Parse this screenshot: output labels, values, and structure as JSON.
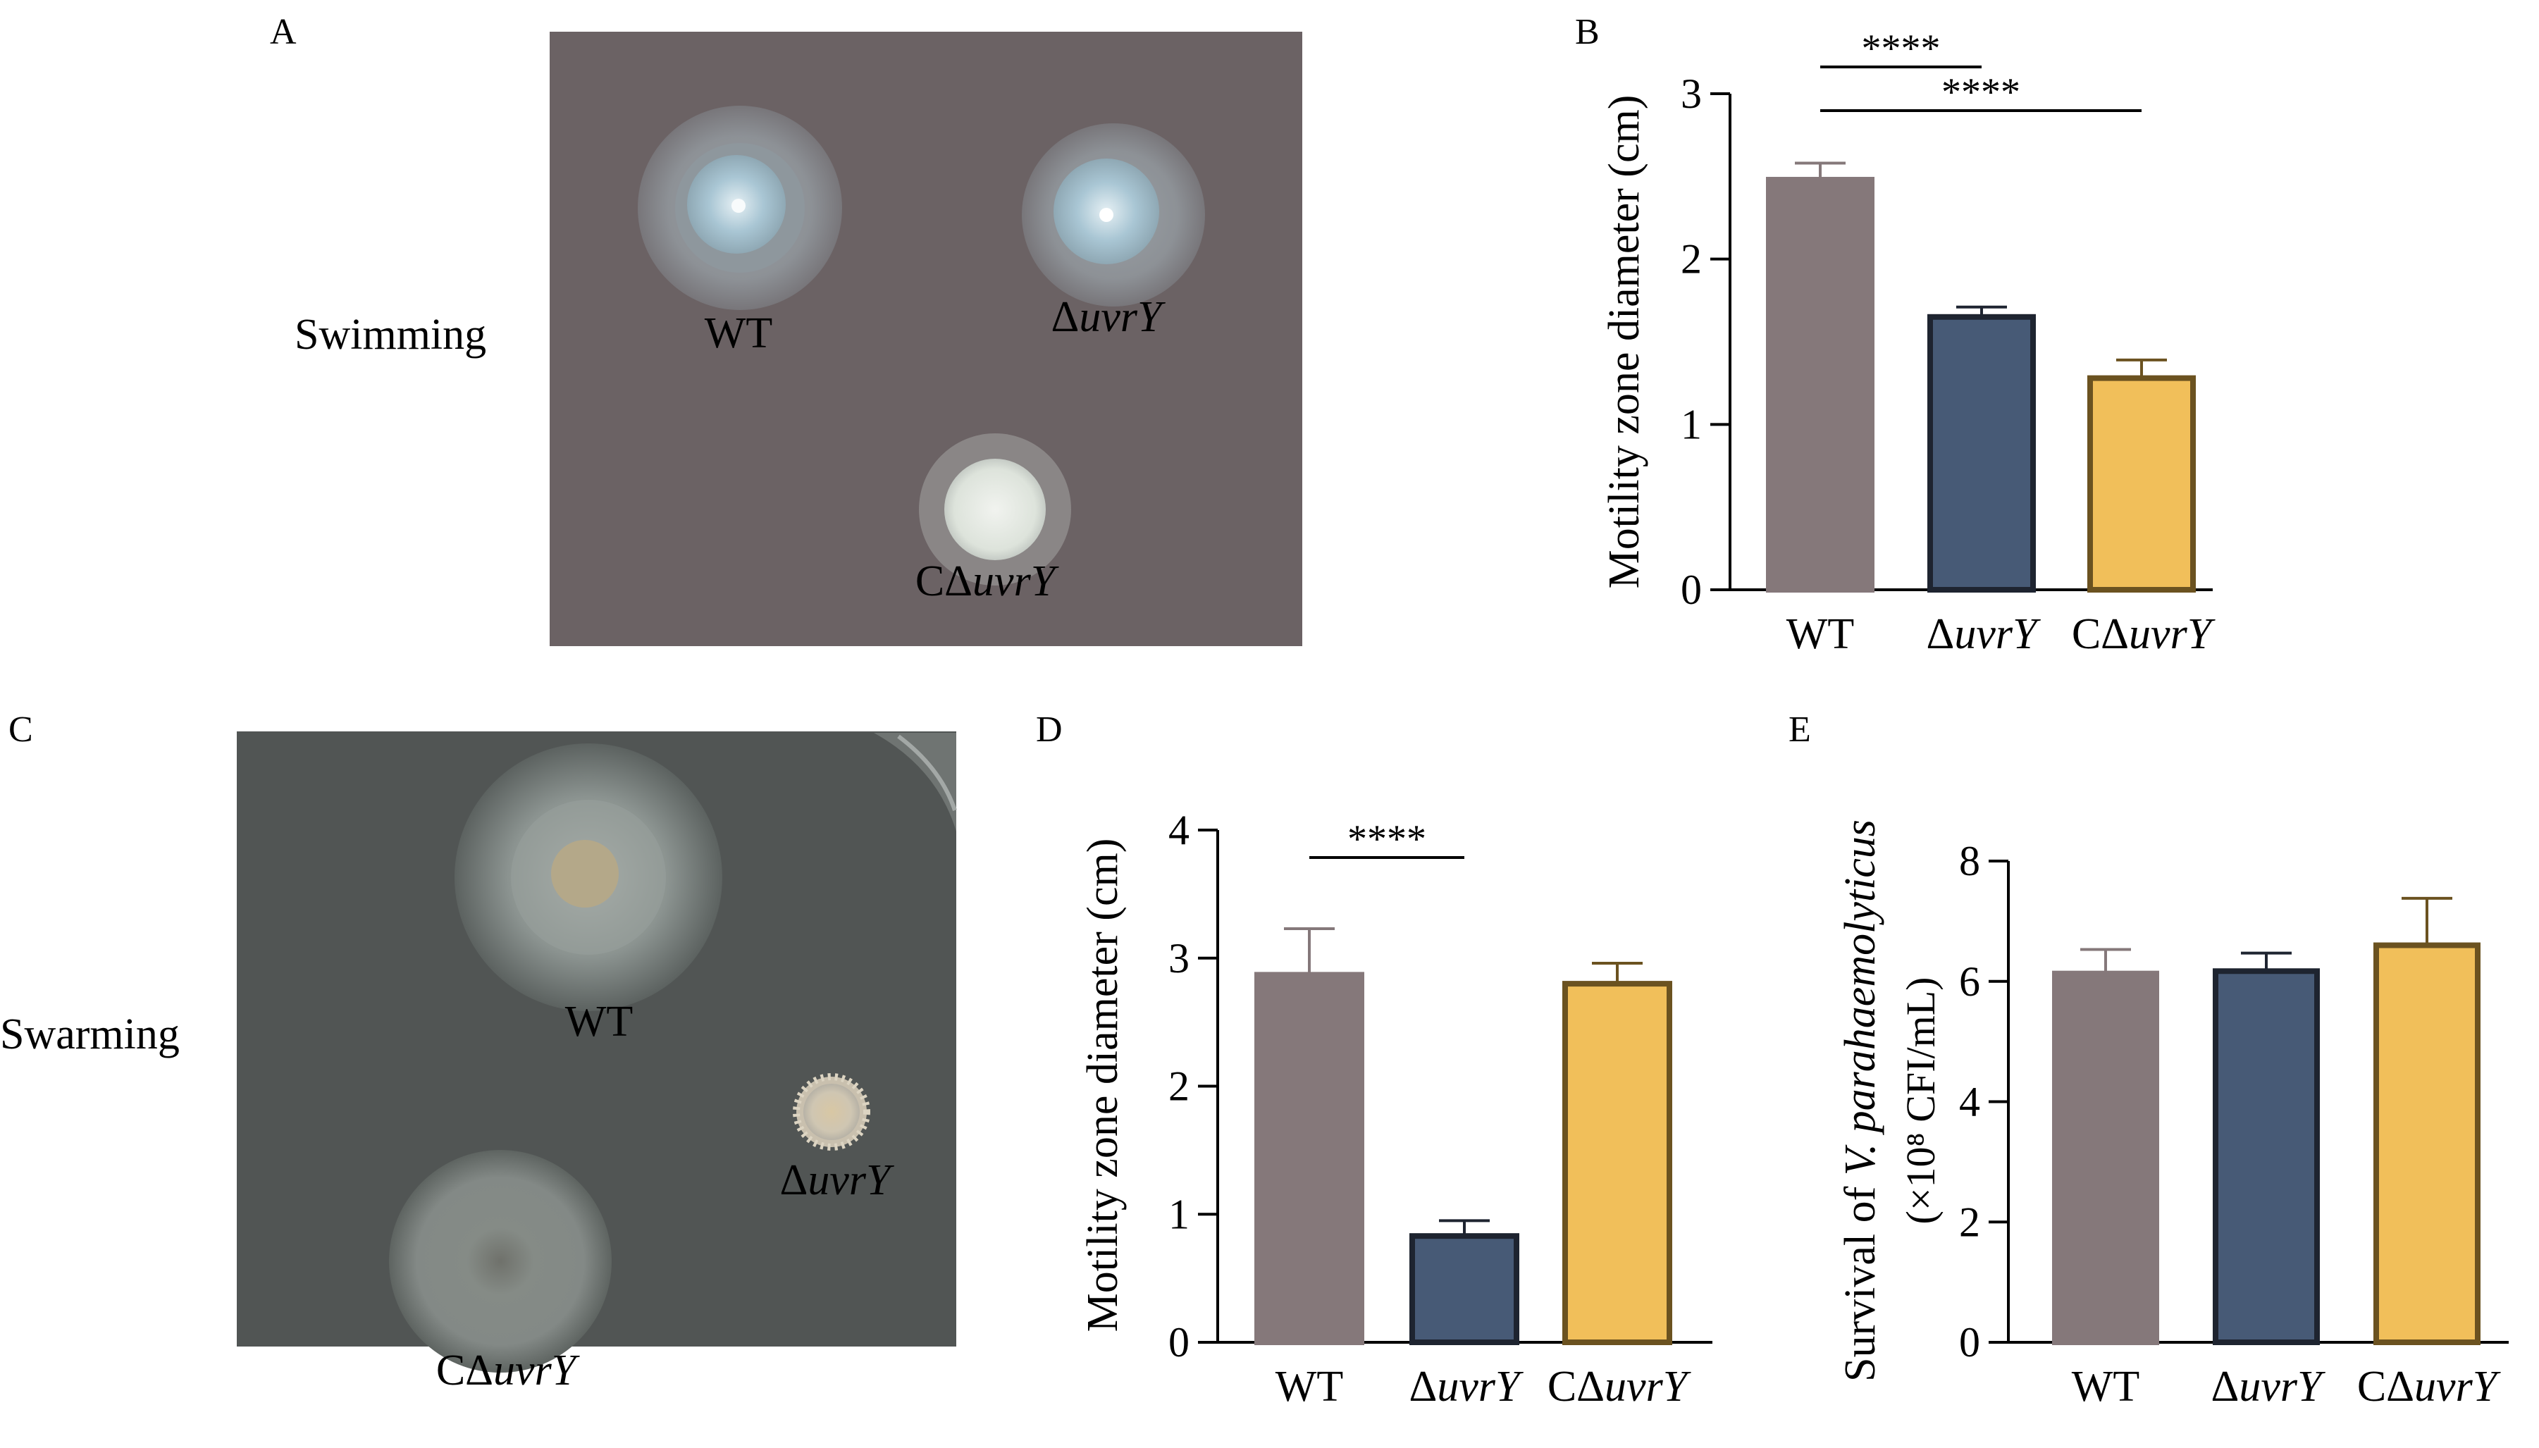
{
  "panels": {
    "A": {
      "letter": "A",
      "row_label": "Swimming",
      "colonies": [
        {
          "label": "WT",
          "italic": ""
        },
        {
          "label": "Δ",
          "italic": "uvrY"
        },
        {
          "label": "CΔ",
          "italic": "uvrY"
        }
      ]
    },
    "C": {
      "letter": "C",
      "row_label": "Swarming",
      "colonies": [
        {
          "label": "WT",
          "italic": ""
        },
        {
          "label": "Δ",
          "italic": "uvrY"
        },
        {
          "label": "CΔ",
          "italic": "uvrY"
        }
      ]
    }
  },
  "chart_data": [
    {
      "panel": "B",
      "type": "bar",
      "categories": [
        {
          "label": "WT",
          "italic": ""
        },
        {
          "label": "Δ",
          "italic": "uvrY"
        },
        {
          "label": "CΔ",
          "italic": "uvrY"
        }
      ],
      "values": [
        2.48,
        1.65,
        1.28
      ],
      "errors": [
        0.1,
        0.06,
        0.11
      ],
      "colors": [
        "#85787a",
        "#475a76",
        "#f1bf5a"
      ],
      "edge_colors": [
        "#85787a",
        "#1e2430",
        "#6b5220"
      ],
      "ylabel": "Motility zone diameter (cm)",
      "ylabel_italic": "",
      "ylabel_line2": "",
      "ylim": [
        0,
        3
      ],
      "yticks": [
        "0",
        "1",
        "2",
        "3"
      ],
      "significance": [
        {
          "from": 0,
          "to": 2,
          "label": "****"
        },
        {
          "from": 0,
          "to": 1,
          "label": "****"
        }
      ]
    },
    {
      "panel": "D",
      "type": "bar",
      "categories": [
        {
          "label": "WT",
          "italic": ""
        },
        {
          "label": "Δ",
          "italic": "uvrY"
        },
        {
          "label": "CΔ",
          "italic": "uvrY"
        }
      ],
      "values": [
        2.87,
        0.83,
        2.8
      ],
      "errors": [
        0.36,
        0.12,
        0.16
      ],
      "colors": [
        "#85787a",
        "#475a76",
        "#f1bf5a"
      ],
      "edge_colors": [
        "#85787a",
        "#1e2430",
        "#6b5220"
      ],
      "ylabel": "Motility zone diameter (cm)",
      "ylabel_italic": "",
      "ylabel_line2": "",
      "ylim": [
        0,
        4
      ],
      "yticks": [
        "0",
        "1",
        "2",
        "3",
        "4"
      ],
      "significance": [
        {
          "from": 0,
          "to": 1,
          "label": "****"
        }
      ]
    },
    {
      "panel": "E",
      "type": "bar",
      "categories": [
        {
          "label": "WT",
          "italic": ""
        },
        {
          "label": "Δ",
          "italic": "uvrY"
        },
        {
          "label": "CΔ",
          "italic": "uvrY"
        }
      ],
      "values": [
        6.13,
        6.17,
        6.6
      ],
      "errors": [
        0.4,
        0.3,
        0.78
      ],
      "colors": [
        "#85787a",
        "#475a76",
        "#f1bf5a"
      ],
      "edge_colors": [
        "#85787a",
        "#1e2430",
        "#6b5220"
      ],
      "ylabel": "Survival of ",
      "ylabel_italic": "V. parahaemolyticus",
      "ylabel_line2": "(×10⁸ CFI/mL)",
      "ylim": [
        0,
        8
      ],
      "yticks": [
        "0",
        "2",
        "4",
        "6",
        "8"
      ],
      "significance": []
    }
  ]
}
